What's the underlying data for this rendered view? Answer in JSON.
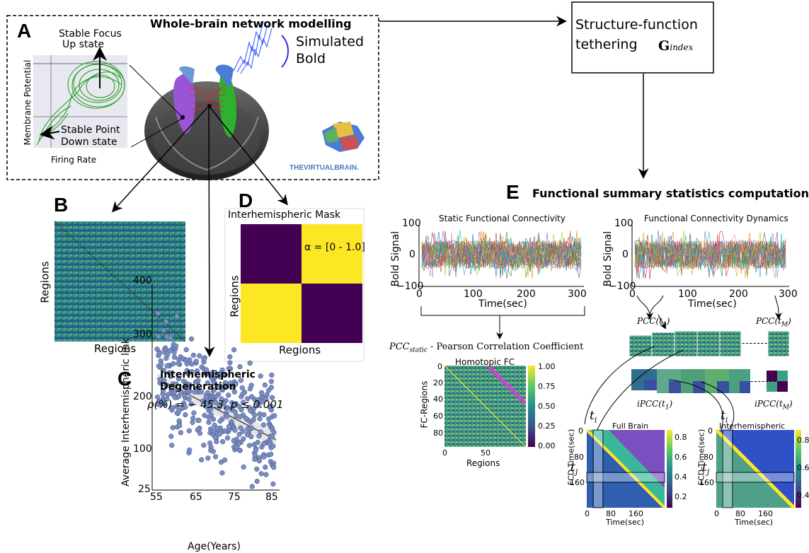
{
  "panel_a": {
    "letter": "A",
    "title": "Whole-brain network modelling",
    "stable_focus_line1": "Stable Focus",
    "stable_focus_line2": "Up state",
    "stable_point_line1": "Stable Point",
    "stable_point_line2": "Down state",
    "y_label": "Membrane Potential",
    "x_label": "Firing Rate",
    "simulated_line1": "Simulated",
    "simulated_line2": "Bold",
    "tvb_logo": "THEVIRTUALBRAIN."
  },
  "sf_box": {
    "line1": "Structure-function",
    "line2": "tethering",
    "g_index": "G",
    "g_sub": "index"
  },
  "panel_b": {
    "letter": "B",
    "y_label": "Regions",
    "x_label": "Regions"
  },
  "panel_c": {
    "letter": "C",
    "title_line1": "Interhemispheric",
    "title_line2": "Degeneration",
    "stat": "ρ(%) = − 45.3, p ≤ 0.001",
    "y_label": "Average Interhemispheric link",
    "x_label": "Age(Years)",
    "y_ticks": [
      "400",
      "300",
      "200",
      "100",
      "25"
    ],
    "x_ticks": [
      "55",
      "65",
      "75",
      "85"
    ]
  },
  "panel_d": {
    "letter": "D",
    "title": "Interhemispheric Mask",
    "alpha": "α = [0 - 1.0]",
    "y_label": "Regions",
    "x_label": "Regions"
  },
  "panel_e": {
    "letter": "E",
    "title": "Functional summary statistics computation",
    "static_title": "Static Functional Connectivity",
    "dynamic_title": "Functional Connectivity Dynamics",
    "bold_label": "Bold Signal",
    "time_label": "Time(sec)",
    "y_ticks": [
      "100",
      "0",
      "−100"
    ],
    "x_ticks": [
      "0",
      "100",
      "200",
      "300"
    ],
    "pcc_static": "PCC",
    "pcc_static_sub": "static",
    "pcc_static_desc": " - Pearson Correlation Coefficient",
    "homotopic_title": "Homotopic FC",
    "fc_regions": "FC-Regions",
    "regions": "Regions",
    "homotopic_y_ticks": [
      "0",
      "20",
      "40",
      "60",
      "80"
    ],
    "homotopic_x_ticks": [
      "0",
      "50"
    ],
    "homotopic_cbar": [
      "1.00",
      "0.75",
      "0.50",
      "0.25",
      "0.00"
    ],
    "pcc_t1": "PCC(t",
    "pcc_t1_sub": "1",
    "pcc_tm_sub": "M",
    "ipcc_t1": "iPCC(t",
    "full_brain": "Full Brain",
    "interhemispheric": "Interhemispheric",
    "fcd_time": "FCD-Time(sec)",
    "time_sec": "Time(sec)",
    "fcd_y_ticks": [
      "0",
      "80",
      "160"
    ],
    "fcd_x_ticks": [
      "0",
      "80",
      "160"
    ],
    "ti": "t",
    "ti_sub": "i",
    "tj": "t",
    "tj_sub": "j",
    "fcd1_cbar": [
      "0.8",
      "0.6",
      "0.4",
      "0.2"
    ],
    "fcd2_cbar": [
      "0.8",
      "0.6",
      "0.4"
    ],
    "dashes": "-------"
  }
}
